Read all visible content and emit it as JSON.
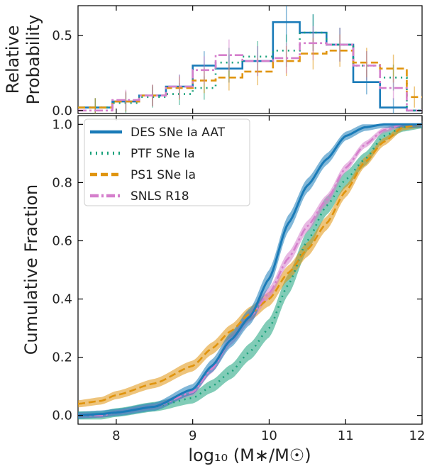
{
  "colors": {
    "des": "#1a7bb8",
    "ptf": "#1aa27c",
    "ps1": "#e0940e",
    "snls": "#d57fcc"
  },
  "chart_data": [
    {
      "type": "bar",
      "panel": "top",
      "ylabel_line1": "Relative",
      "ylabel_line2": "Probability",
      "xlim": [
        7.5,
        12
      ],
      "ylim": [
        -0.02,
        0.7
      ],
      "yticks": [
        0.0,
        0.5
      ],
      "ytick_labels": [
        "0.0",
        "0.5"
      ],
      "bin_edges": [
        7.5,
        7.95,
        8.3,
        8.65,
        9.0,
        9.3,
        9.65,
        10.05,
        10.4,
        10.75,
        11.1,
        11.45,
        11.8,
        12.0
      ],
      "series": [
        {
          "key": "des",
          "name": "DES SNe Ia AAT",
          "values": [
            0.02,
            0.06,
            0.1,
            0.16,
            0.3,
            0.28,
            0.33,
            0.59,
            0.52,
            0.44,
            0.19,
            0.02,
            0.0
          ]
        },
        {
          "key": "ptf",
          "name": "PTF SNe Ia",
          "values": [
            0.02,
            0.05,
            0.09,
            0.11,
            0.15,
            0.32,
            0.36,
            0.4,
            0.52,
            0.44,
            0.3,
            0.22,
            0.0
          ]
        },
        {
          "key": "ps1",
          "name": "PS1 SNe Ia",
          "values": [
            0.02,
            0.06,
            0.1,
            0.15,
            0.2,
            0.22,
            0.26,
            0.33,
            0.38,
            0.4,
            0.32,
            0.28,
            0.09
          ]
        },
        {
          "key": "snls",
          "name": "SNLS R18",
          "values": [
            0.0,
            0.07,
            0.1,
            0.16,
            0.27,
            0.37,
            0.33,
            0.35,
            0.45,
            0.44,
            0.3,
            0.15,
            0.0
          ]
        }
      ]
    },
    {
      "type": "line",
      "panel": "bottom",
      "xlabel": "log₁₀ (M∗/M☉)",
      "ylabel": "Cumulative Fraction",
      "xlim": [
        7.5,
        12
      ],
      "ylim": [
        -0.03,
        1.03
      ],
      "xticks": [
        8,
        9,
        10,
        11,
        12
      ],
      "xtick_labels": [
        "8",
        "9",
        "10",
        "11",
        "12"
      ],
      "yticks": [
        0.0,
        0.2,
        0.4,
        0.6,
        0.8,
        1.0
      ],
      "ytick_labels": [
        "0.0",
        "0.2",
        "0.4",
        "0.6",
        "0.8",
        "1.0"
      ],
      "legend_position": "top-left",
      "x": [
        7.5,
        7.8,
        8.0,
        8.5,
        9.0,
        9.25,
        9.5,
        9.75,
        10.0,
        10.25,
        10.5,
        10.75,
        11.0,
        11.25,
        11.5,
        11.75,
        12.0
      ],
      "series": [
        {
          "key": "des",
          "name": "DES SNe Ia AAT",
          "band": 0.03,
          "values": [
            0.0,
            0.005,
            0.01,
            0.03,
            0.09,
            0.17,
            0.26,
            0.34,
            0.47,
            0.66,
            0.79,
            0.88,
            0.96,
            0.99,
            1.0,
            1.0,
            1.0
          ]
        },
        {
          "key": "ptf",
          "name": "PTF SNe Ia",
          "band": 0.035,
          "values": [
            0.0,
            0.0,
            0.01,
            0.03,
            0.06,
            0.1,
            0.15,
            0.22,
            0.3,
            0.45,
            0.6,
            0.72,
            0.81,
            0.88,
            0.96,
            0.99,
            1.0
          ]
        },
        {
          "key": "ps1",
          "name": "PS1 SNe Ia",
          "band": 0.025,
          "values": [
            0.04,
            0.05,
            0.07,
            0.11,
            0.17,
            0.23,
            0.29,
            0.35,
            0.4,
            0.49,
            0.57,
            0.66,
            0.77,
            0.87,
            0.94,
            0.99,
            1.0
          ]
        },
        {
          "key": "snls",
          "name": "SNLS R18",
          "band": 0.02,
          "values": [
            0.0,
            0.0,
            0.01,
            0.03,
            0.08,
            0.16,
            0.26,
            0.34,
            0.42,
            0.54,
            0.65,
            0.74,
            0.85,
            0.93,
            0.98,
            1.0,
            1.0
          ]
        }
      ]
    }
  ]
}
